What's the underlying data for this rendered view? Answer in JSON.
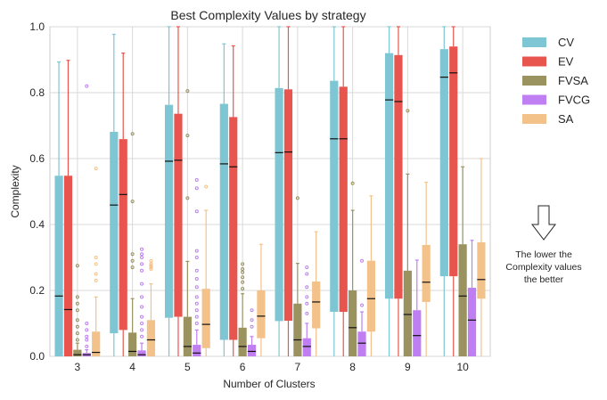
{
  "chart_data": {
    "type": "boxplot",
    "title": "Best Complexity Values by strategy",
    "xlabel": "Number of Clusters",
    "ylabel": "Complexity",
    "ylim": [
      0,
      1.0
    ],
    "yticks": [
      "0.0",
      "0.2",
      "0.4",
      "0.6",
      "0.8",
      "1.0"
    ],
    "grid": true,
    "legend_position": "right",
    "categories": [
      "3",
      "4",
      "5",
      "6",
      "7",
      "8",
      "9",
      "10"
    ],
    "series": [
      {
        "name": "CV",
        "color": "#7ec6d3",
        "boxes": [
          {
            "q1": 0.0,
            "median": 0.183,
            "q3": 0.548,
            "wlo": 0.0,
            "whi": 0.893,
            "fliers": []
          },
          {
            "q1": 0.07,
            "median": 0.459,
            "q3": 0.681,
            "wlo": 0.0,
            "whi": 0.977,
            "fliers": []
          },
          {
            "q1": 0.117,
            "median": 0.592,
            "q3": 0.763,
            "wlo": 0.0,
            "whi": 1.0,
            "fliers": []
          },
          {
            "q1": 0.05,
            "median": 0.584,
            "q3": 0.766,
            "wlo": 0.0,
            "whi": 0.948,
            "fliers": []
          },
          {
            "q1": 0.107,
            "median": 0.618,
            "q3": 0.814,
            "wlo": 0.0,
            "whi": 1.0,
            "fliers": []
          },
          {
            "q1": 0.135,
            "median": 0.66,
            "q3": 0.836,
            "wlo": 0.0,
            "whi": 1.0,
            "fliers": []
          },
          {
            "q1": 0.175,
            "median": 0.778,
            "q3": 0.92,
            "wlo": 0.0,
            "whi": 1.0,
            "fliers": []
          },
          {
            "q1": 0.243,
            "median": 0.847,
            "q3": 0.932,
            "wlo": 0.0,
            "whi": 1.0,
            "fliers": []
          }
        ]
      },
      {
        "name": "EV",
        "color": "#e8554e",
        "boxes": [
          {
            "q1": 0.0,
            "median": 0.142,
            "q3": 0.548,
            "wlo": 0.0,
            "whi": 0.898,
            "fliers": []
          },
          {
            "q1": 0.08,
            "median": 0.491,
            "q3": 0.659,
            "wlo": 0.0,
            "whi": 0.92,
            "fliers": []
          },
          {
            "q1": 0.12,
            "median": 0.595,
            "q3": 0.736,
            "wlo": 0.0,
            "whi": 1.0,
            "fliers": []
          },
          {
            "q1": 0.05,
            "median": 0.575,
            "q3": 0.726,
            "wlo": 0.0,
            "whi": 0.942,
            "fliers": []
          },
          {
            "q1": 0.108,
            "median": 0.62,
            "q3": 0.81,
            "wlo": 0.0,
            "whi": 1.0,
            "fliers": []
          },
          {
            "q1": 0.135,
            "median": 0.66,
            "q3": 0.818,
            "wlo": 0.0,
            "whi": 1.0,
            "fliers": []
          },
          {
            "q1": 0.175,
            "median": 0.773,
            "q3": 0.914,
            "wlo": 0.0,
            "whi": 1.0,
            "fliers": []
          },
          {
            "q1": 0.243,
            "median": 0.86,
            "q3": 0.94,
            "wlo": 0.0,
            "whi": 1.0,
            "fliers": []
          }
        ]
      },
      {
        "name": "FVSA",
        "color": "#9a9360",
        "boxes": [
          {
            "q1": 0.0,
            "median": 0.005,
            "q3": 0.02,
            "wlo": 0.0,
            "whi": 0.04,
            "fliers": [
              0.05,
              0.07,
              0.09,
              0.11,
              0.14,
              0.16,
              0.18,
              0.275
            ]
          },
          {
            "q1": 0.0,
            "median": 0.015,
            "q3": 0.072,
            "wlo": 0.0,
            "whi": 0.175,
            "fliers": [
              0.27,
              0.29,
              0.31,
              0.47,
              0.675
            ]
          },
          {
            "q1": 0.0,
            "median": 0.03,
            "q3": 0.12,
            "wlo": 0.0,
            "whi": 0.288,
            "fliers": [
              0.48,
              0.67,
              0.805
            ]
          },
          {
            "q1": 0.0,
            "median": 0.03,
            "q3": 0.087,
            "wlo": 0.0,
            "whi": 0.19,
            "fliers": [
              0.205,
              0.225,
              0.24,
              0.255,
              0.265,
              0.28
            ]
          },
          {
            "q1": 0.0,
            "median": 0.05,
            "q3": 0.16,
            "wlo": 0.0,
            "whi": 0.282,
            "fliers": [
              0.48
            ]
          },
          {
            "q1": 0.0,
            "median": 0.087,
            "q3": 0.2,
            "wlo": 0.0,
            "whi": 0.443,
            "fliers": [
              0.525
            ]
          },
          {
            "q1": 0.0,
            "median": 0.127,
            "q3": 0.26,
            "wlo": 0.0,
            "whi": 0.553,
            "fliers": [
              0.745
            ]
          },
          {
            "q1": 0.0,
            "median": 0.183,
            "q3": 0.34,
            "wlo": 0.0,
            "whi": 0.575,
            "fliers": []
          }
        ]
      },
      {
        "name": "FVCG",
        "color": "#bf7ff3",
        "boxes": [
          {
            "q1": 0.0,
            "median": 0.005,
            "q3": 0.01,
            "wlo": 0.0,
            "whi": 0.02,
            "fliers": [
              0.03,
              0.05,
              0.06,
              0.08,
              0.1,
              0.82
            ]
          },
          {
            "q1": 0.0,
            "median": 0.005,
            "q3": 0.018,
            "wlo": 0.0,
            "whi": 0.04,
            "fliers": [
              0.06,
              0.08,
              0.1,
              0.12,
              0.15,
              0.18,
              0.22,
              0.26,
              0.28,
              0.3,
              0.31,
              0.325
            ]
          },
          {
            "q1": 0.0,
            "median": 0.01,
            "q3": 0.035,
            "wlo": 0.0,
            "whi": 0.08,
            "fliers": [
              0.1,
              0.12,
              0.14,
              0.16,
              0.18,
              0.21,
              0.235,
              0.26,
              0.3,
              0.32,
              0.44,
              0.51,
              0.535
            ]
          },
          {
            "q1": 0.0,
            "median": 0.015,
            "q3": 0.035,
            "wlo": 0.0,
            "whi": 0.06,
            "fliers": [
              0.09,
              0.11,
              0.14
            ]
          },
          {
            "q1": 0.0,
            "median": 0.03,
            "q3": 0.055,
            "wlo": 0.0,
            "whi": 0.1,
            "fliers": [
              0.13,
              0.16,
              0.18,
              0.21,
              0.25,
              0.27
            ]
          },
          {
            "q1": 0.0,
            "median": 0.04,
            "q3": 0.075,
            "wlo": 0.0,
            "whi": 0.135,
            "fliers": [
              0.155,
              0.29
            ]
          },
          {
            "q1": 0.0,
            "median": 0.063,
            "q3": 0.14,
            "wlo": 0.0,
            "whi": 0.292,
            "fliers": []
          },
          {
            "q1": 0.0,
            "median": 0.11,
            "q3": 0.208,
            "wlo": 0.0,
            "whi": 0.352,
            "fliers": []
          }
        ]
      },
      {
        "name": "SA",
        "color": "#f3c28b",
        "boxes": [
          {
            "q1": 0.0,
            "median": 0.012,
            "q3": 0.075,
            "wlo": 0.0,
            "whi": 0.18,
            "fliers": [
              0.23,
              0.25,
              0.28,
              0.3,
              0.57
            ]
          },
          {
            "q1": 0.0,
            "median": 0.05,
            "q3": 0.11,
            "wlo": 0.0,
            "whi": 0.22,
            "fliers": [
              0.265,
              0.27,
              0.275,
              0.28,
              0.29
            ]
          },
          {
            "q1": 0.025,
            "median": 0.097,
            "q3": 0.205,
            "wlo": 0.0,
            "whi": 0.443,
            "fliers": [
              0.515
            ]
          },
          {
            "q1": 0.055,
            "median": 0.122,
            "q3": 0.2,
            "wlo": 0.0,
            "whi": 0.34,
            "fliers": []
          },
          {
            "q1": 0.085,
            "median": 0.165,
            "q3": 0.227,
            "wlo": 0.0,
            "whi": 0.378,
            "fliers": []
          },
          {
            "q1": 0.075,
            "median": 0.175,
            "q3": 0.29,
            "wlo": 0.0,
            "whi": 0.487,
            "fliers": []
          },
          {
            "q1": 0.165,
            "median": 0.225,
            "q3": 0.338,
            "wlo": 0.0,
            "whi": 0.528,
            "fliers": []
          },
          {
            "q1": 0.175,
            "median": 0.233,
            "q3": 0.346,
            "wlo": 0.0,
            "whi": 0.6,
            "fliers": []
          }
        ]
      }
    ],
    "annotation": {
      "arrow": "down-arrow",
      "lines": [
        "The lower the",
        "Complexity values",
        "the better"
      ]
    }
  }
}
